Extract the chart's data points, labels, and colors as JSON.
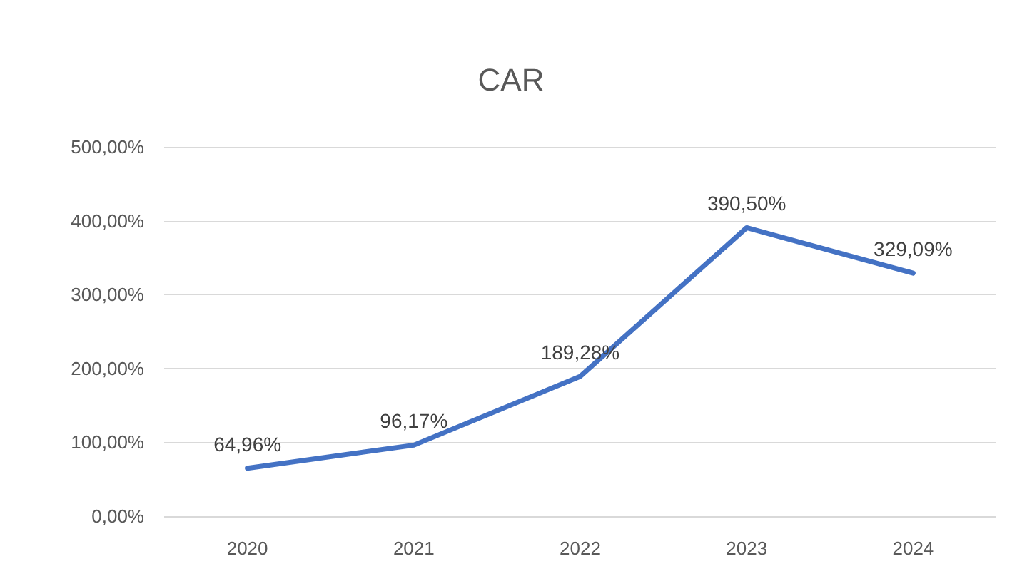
{
  "chart_data": {
    "type": "line",
    "title": "CAR",
    "categories": [
      "2020",
      "2021",
      "2022",
      "2023",
      "2024"
    ],
    "series": [
      {
        "color": "#4472c4",
        "values": [
          64.96,
          96.17,
          189.28,
          390.5,
          329.09
        ],
        "value_labels": [
          "64,96%",
          "96,17%",
          "189,28%",
          "390,50%",
          "329,09%"
        ]
      }
    ],
    "ylim": [
      0,
      500
    ],
    "yticks": [
      {
        "value": 0,
        "label": "0,00%"
      },
      {
        "value": 100,
        "label": "100,00%"
      },
      {
        "value": 200,
        "label": "200,00%"
      },
      {
        "value": 300,
        "label": "300,00%"
      },
      {
        "value": 400,
        "label": "400,00%"
      },
      {
        "value": 500,
        "label": "500,00%"
      }
    ],
    "grid": "y",
    "marker": "none",
    "line_style": "solid"
  }
}
